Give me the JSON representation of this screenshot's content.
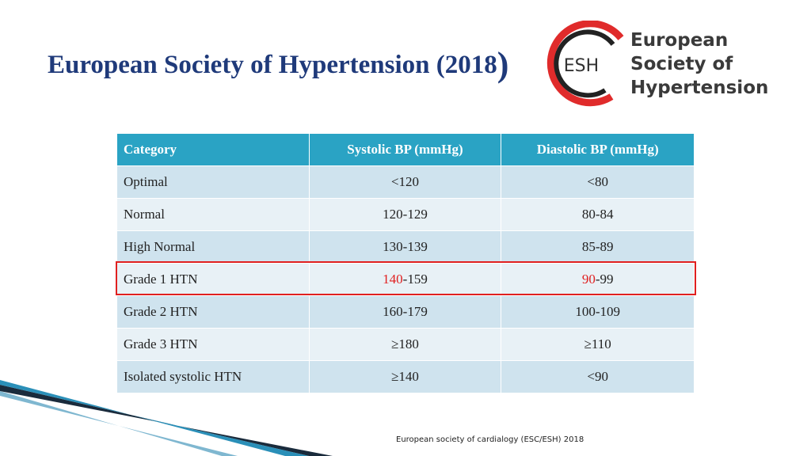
{
  "title": {
    "main": "European Society of Hypertension (2018",
    "close_paren": ")"
  },
  "logo": {
    "abbrev": "ESH",
    "line1": "European",
    "line2": "Society of",
    "line3": "Hypertension",
    "ring_color": "#e02b2b"
  },
  "table": {
    "headers": [
      "Category",
      "Systolic BP (mmHg)",
      "Diastolic BP (mmHg)"
    ],
    "rows": [
      {
        "category": "Optimal",
        "systolic": "<120",
        "diastolic": "<80"
      },
      {
        "category": "Normal",
        "systolic": "120-129",
        "diastolic": "80-84"
      },
      {
        "category": "High Normal",
        "systolic": "130-139",
        "diastolic": "85-89"
      },
      {
        "category": "Grade 1 HTN",
        "systolic_red": "140",
        "systolic_rest": "-159",
        "diastolic_red": "90",
        "diastolic_rest": "-99"
      },
      {
        "category": "Grade 2 HTN",
        "systolic": "160-179",
        "diastolic": "100-109"
      },
      {
        "category": "Grade 3 HTN",
        "systolic": "≥180",
        "diastolic": "≥110"
      },
      {
        "category": "Isolated systolic HTN",
        "systolic": "≥140",
        "diastolic": "<90"
      }
    ]
  },
  "colors": {
    "header_bg": "#2aa3c4",
    "row_odd": "#cfe3ee",
    "row_even": "#e8f1f6",
    "highlight": "#e02020",
    "title": "#1f3a7a"
  },
  "footer": "European society of cardialogy  (ESC/ESH) 2018"
}
